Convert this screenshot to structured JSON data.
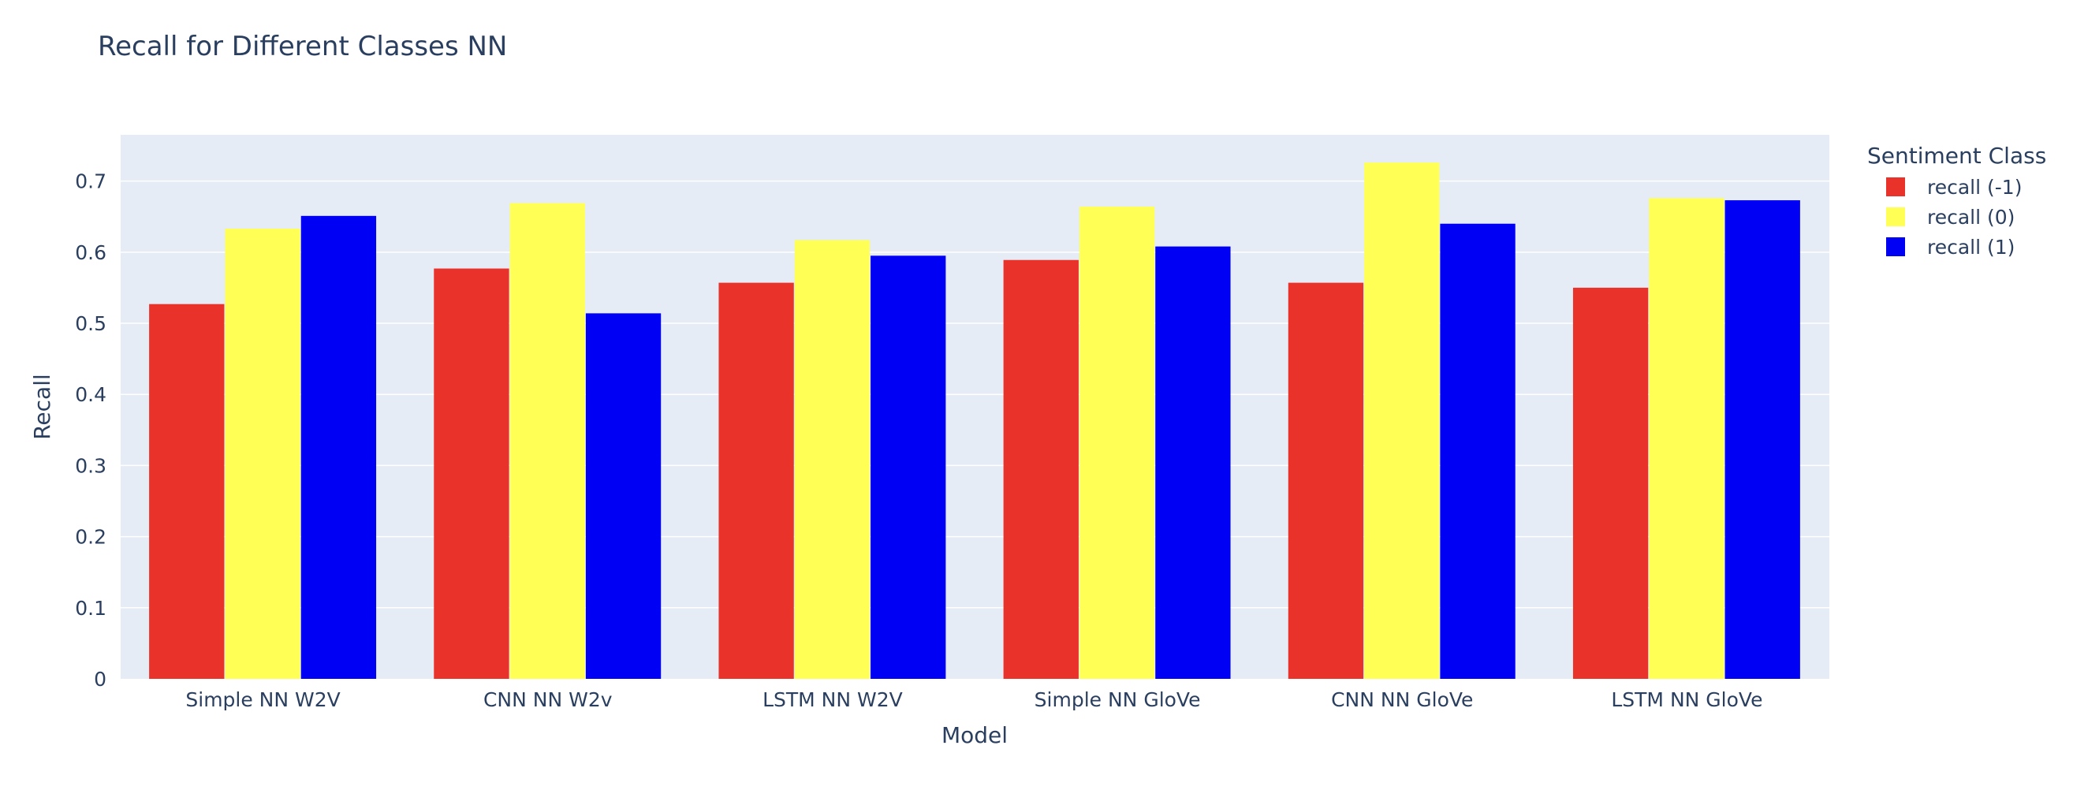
{
  "chart_data": {
    "type": "bar",
    "title": "Recall for Different Classes NN",
    "xlabel": "Model",
    "ylabel": "Recall",
    "categories": [
      "Simple NN W2V",
      "CNN NN W2v",
      "LSTM NN W2V",
      "Simple NN GloVe",
      "CNN NN GloVe",
      "LSTM NN GloVe"
    ],
    "series": [
      {
        "name": "recall (-1)",
        "color": "#e8322a",
        "values": [
          0.527,
          0.577,
          0.557,
          0.589,
          0.557,
          0.55
        ]
      },
      {
        "name": "recall (0)",
        "color": "#ffff55",
        "values": [
          0.633,
          0.669,
          0.617,
          0.664,
          0.726,
          0.676
        ]
      },
      {
        "name": "recall (1)",
        "color": "#0000f5",
        "values": [
          0.651,
          0.514,
          0.595,
          0.608,
          0.64,
          0.673
        ]
      }
    ],
    "ylim": [
      0,
      0.765
    ],
    "yticks": [
      0,
      0.1,
      0.2,
      0.3,
      0.4,
      0.5,
      0.6,
      0.7
    ],
    "ytick_labels": [
      "0",
      "0.1",
      "0.2",
      "0.3",
      "0.4",
      "0.5",
      "0.6",
      "0.7"
    ],
    "legend_title": "Sentiment Class",
    "legend_position": "right",
    "grid": true,
    "plot_bgcolor": "#e5ecf6",
    "grid_color": "#ffffff"
  }
}
